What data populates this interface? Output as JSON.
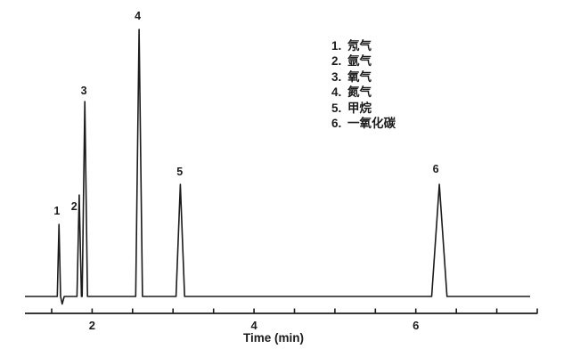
{
  "chart_data": {
    "type": "line",
    "title": "",
    "xlabel": "Time (min)",
    "ylabel": "",
    "x_axis": {
      "range_min": [
        1.17,
        7.5
      ],
      "tick_interval_min": 0.5,
      "labeled_ticks": [
        {
          "t": 2,
          "label": "2"
        },
        {
          "t": 4,
          "label": "4"
        },
        {
          "t": 6,
          "label": "6"
        }
      ]
    },
    "grid": "off",
    "legend_position": "upper-right",
    "line_color": "#1b1b1b",
    "background_color": "#ffffff",
    "peaks": [
      {
        "num": "1",
        "name": "氖气",
        "rt_min": 1.59,
        "height_rel": 0.27,
        "width_min": 0.04
      },
      {
        "num": "2",
        "name": "氩气",
        "rt_min": 1.84,
        "height_rel": 0.38,
        "width_min": 0.055
      },
      {
        "num": "3",
        "name": "氧气",
        "rt_min": 1.91,
        "height_rel": 0.73,
        "width_min": 0.066
      },
      {
        "num": "4",
        "name": "氮气",
        "rt_min": 2.58,
        "height_rel": 1.0,
        "width_min": 0.083
      },
      {
        "num": "5",
        "name": "甲烷",
        "rt_min": 3.09,
        "height_rel": 0.42,
        "width_min": 0.105
      },
      {
        "num": "6",
        "name": "一氧化碳",
        "rt_min": 6.29,
        "height_rel": 0.42,
        "width_min": 0.19
      }
    ],
    "negative_dip": {
      "rt_min": 1.63,
      "depth_rel": 0.028,
      "width_min": 0.05
    }
  }
}
